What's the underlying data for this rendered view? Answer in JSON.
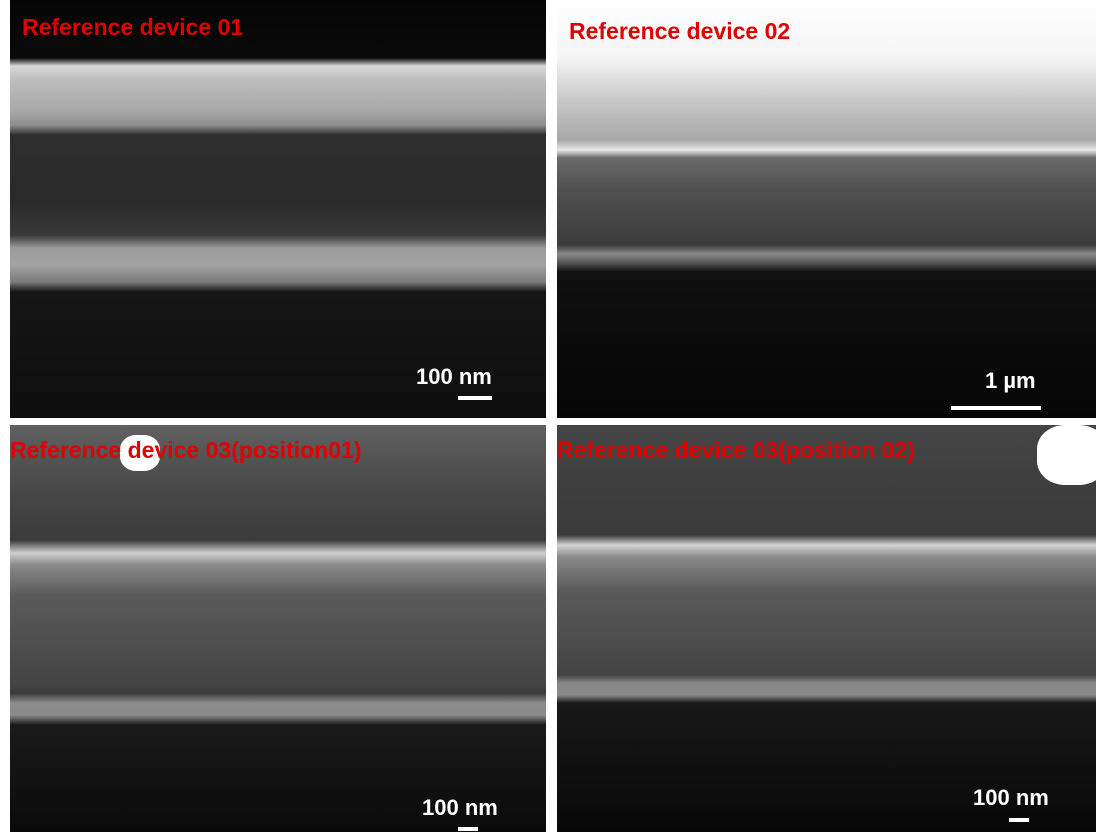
{
  "panels": [
    {
      "title": "Reference device 01",
      "scale_bar": "100 nm"
    },
    {
      "title": "Reference device 02",
      "scale_bar": "1 µm"
    },
    {
      "title": "Reference device 03(position01)",
      "scale_bar": "100 nm"
    },
    {
      "title": "Reference device 03(position 02)",
      "scale_bar": "100 nm"
    }
  ]
}
